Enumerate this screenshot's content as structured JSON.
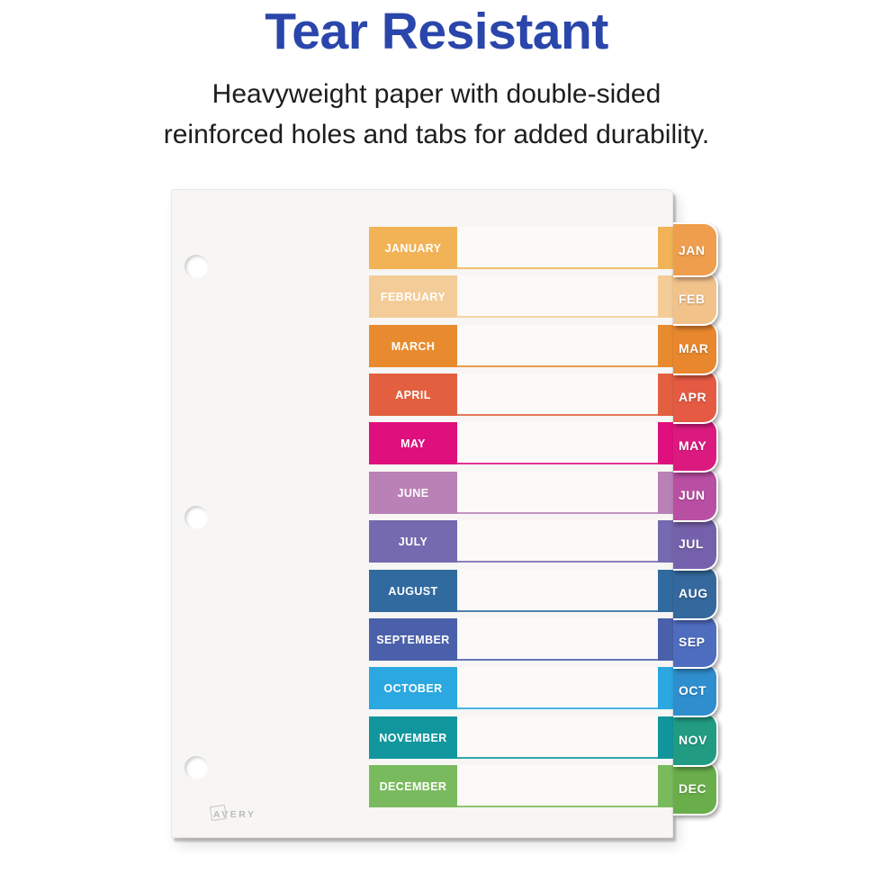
{
  "header": {
    "title": "Tear Resistant",
    "title_color": "#2A46AB",
    "subtitle_line1": "Heavyweight paper with double-sided",
    "subtitle_line2": "reinforced holes and tabs for added durability."
  },
  "divider_sheet": {
    "brand_logo": "AVERY",
    "paper_color": "#F7F6F4",
    "months": [
      {
        "name": "JANUARY",
        "abbr": "JAN",
        "row_color": "#F2B357",
        "tab_color": "#EF9E4D"
      },
      {
        "name": "FEBRUARY",
        "abbr": "FEB",
        "row_color": "#F4CC97",
        "tab_color": "#F2C28B"
      },
      {
        "name": "MARCH",
        "abbr": "MAR",
        "row_color": "#E88B2F",
        "tab_color": "#E8872D"
      },
      {
        "name": "APRIL",
        "abbr": "APR",
        "row_color": "#E2603F",
        "tab_color": "#E55A43"
      },
      {
        "name": "MAY",
        "abbr": "MAY",
        "row_color": "#DF0F7D",
        "tab_color": "#DB1A7F"
      },
      {
        "name": "JUNE",
        "abbr": "JUN",
        "row_color": "#B981B5",
        "tab_color": "#B94FA3"
      },
      {
        "name": "JULY",
        "abbr": "JUL",
        "row_color": "#7569AF",
        "tab_color": "#7561AB"
      },
      {
        "name": "AUGUST",
        "abbr": "AUG",
        "row_color": "#306A9F",
        "tab_color": "#35689C"
      },
      {
        "name": "SEPTEMBER",
        "abbr": "SEP",
        "row_color": "#4B60AA",
        "tab_color": "#4F6DBF"
      },
      {
        "name": "OCTOBER",
        "abbr": "OCT",
        "row_color": "#2AA8DF",
        "tab_color": "#2F8ECD"
      },
      {
        "name": "NOVEMBER",
        "abbr": "NOV",
        "row_color": "#12969E",
        "tab_color": "#219C82"
      },
      {
        "name": "DECEMBER",
        "abbr": "DEC",
        "row_color": "#7ABA5E",
        "tab_color": "#69AE4A"
      }
    ]
  }
}
